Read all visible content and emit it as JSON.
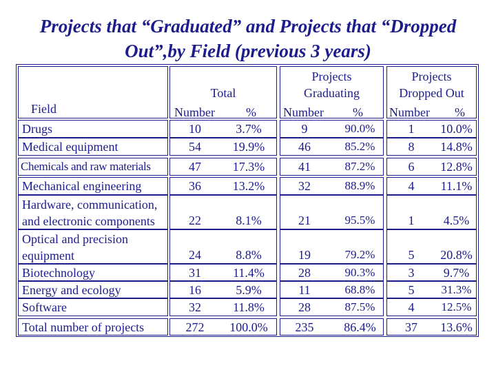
{
  "title": "Projects that “Graduated” and Projects that “Dropped Out”,by Field (previous 3 years)",
  "colors": {
    "text": "#1c1c8c",
    "border": "#1c1c8c",
    "background": "#ffffff"
  },
  "table": {
    "header": {
      "field": "Field",
      "total": "Total",
      "graduating_top": "Projects",
      "graduating_bottom": "Graduating",
      "dropped_top": "Projects",
      "dropped_bottom": "Dropped Out",
      "number": "Number",
      "percent": "%"
    },
    "rows": [
      {
        "field": "Drugs",
        "total_num": "10",
        "total_pct": "3.7%",
        "grad_num": "9",
        "grad_pct": "90.0%",
        "drop_num": "1",
        "drop_pct": "10.0%"
      },
      {
        "field": "Medical equipment",
        "total_num": "54",
        "total_pct": "19.9%",
        "grad_num": "46",
        "grad_pct": "85.2%",
        "drop_num": "8",
        "drop_pct": "14.8%"
      },
      {
        "field": "Chemicals and raw materials",
        "total_num": "47",
        "total_pct": "17.3%",
        "grad_num": "41",
        "grad_pct": "87.2%",
        "drop_num": "6",
        "drop_pct": "12.8%"
      },
      {
        "field": "Mechanical engineering",
        "total_num": "36",
        "total_pct": "13.2%",
        "grad_num": "32",
        "grad_pct": "88.9%",
        "drop_num": "4",
        "drop_pct": "11.1%"
      },
      {
        "field_line1": "Hardware, communication,",
        "field_line2": "and electronic components",
        "total_num": "22",
        "total_pct": "8.1%",
        "grad_num": "21",
        "grad_pct": "95.5%",
        "drop_num": "1",
        "drop_pct": "4.5%"
      },
      {
        "field_line1": "Optical and precision",
        "field_line2": "equipment",
        "total_num": "24",
        "total_pct": "8.8%",
        "grad_num": "19",
        "grad_pct": "79.2%",
        "drop_num": "5",
        "drop_pct": "20.8%"
      },
      {
        "field": "Biotechnology",
        "total_num": "31",
        "total_pct": "11.4%",
        "grad_num": "28",
        "grad_pct": "90.3%",
        "drop_num": "3",
        "drop_pct": "9.7%"
      },
      {
        "field": "Energy and ecology",
        "total_num": "16",
        "total_pct": "5.9%",
        "grad_num": "11",
        "grad_pct": "68.8%",
        "drop_num": "5",
        "drop_pct": "31.3%"
      },
      {
        "field": "Software",
        "total_num": "32",
        "total_pct": "11.8%",
        "grad_num": "28",
        "grad_pct": "87.5%",
        "drop_num": "4",
        "drop_pct": "12.5%"
      }
    ],
    "total_row": {
      "field": "Total number of projects",
      "total_num": "272",
      "total_pct": "100.0%",
      "grad_num": "235",
      "grad_pct": "86.4%",
      "drop_num": "37",
      "drop_pct": "13.6%"
    }
  }
}
